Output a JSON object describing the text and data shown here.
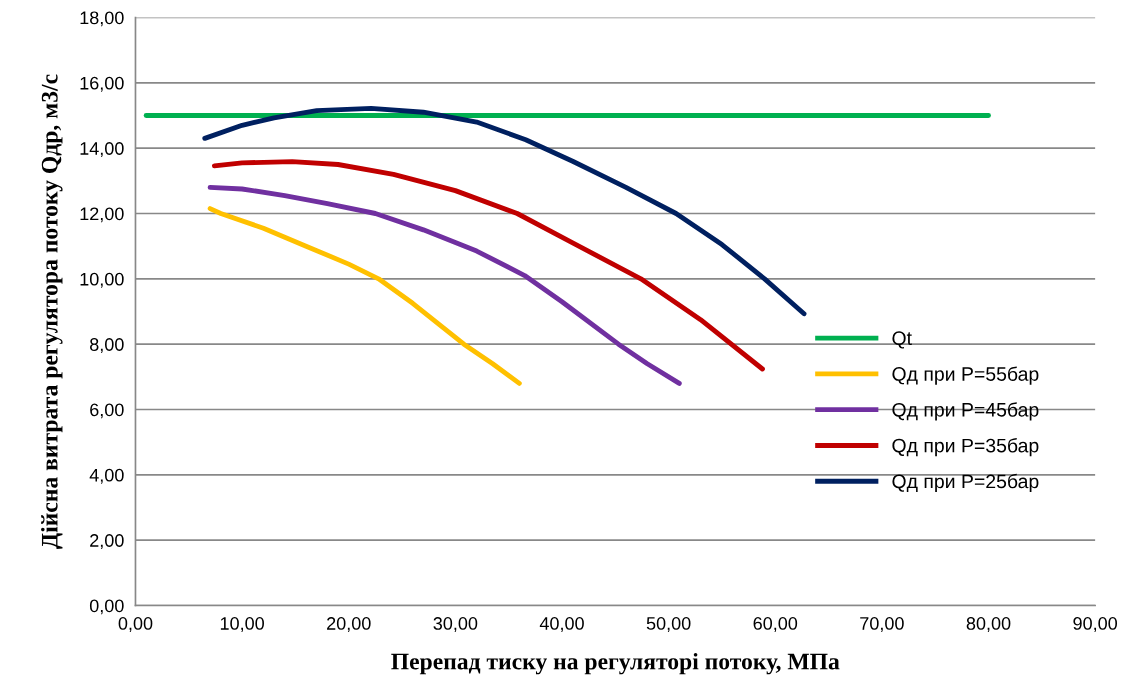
{
  "chart_data": {
    "type": "line",
    "xlabel": "Перепад тиску на регуляторі потоку, МПа",
    "ylabel": "Дійсна витрата регулятора потоку Qдр, м3/с",
    "xlim": [
      0,
      90
    ],
    "ylim": [
      0,
      18
    ],
    "xticks": [
      {
        "value": 0,
        "label": "0,00"
      },
      {
        "value": 10,
        "label": "10,00"
      },
      {
        "value": 20,
        "label": "20,00"
      },
      {
        "value": 30,
        "label": "30,00"
      },
      {
        "value": 40,
        "label": "40,00"
      },
      {
        "value": 50,
        "label": "50,00"
      },
      {
        "value": 60,
        "label": "60,00"
      },
      {
        "value": 70,
        "label": "70,00"
      },
      {
        "value": 80,
        "label": "80,00"
      },
      {
        "value": 90,
        "label": "90,00"
      }
    ],
    "yticks": [
      {
        "value": 0,
        "label": "0,00"
      },
      {
        "value": 2,
        "label": "2,00"
      },
      {
        "value": 4,
        "label": "4,00"
      },
      {
        "value": 6,
        "label": "6,00"
      },
      {
        "value": 8,
        "label": "8,00"
      },
      {
        "value": 10,
        "label": "10,00"
      },
      {
        "value": 12,
        "label": "12,00"
      },
      {
        "value": 14,
        "label": "14,00"
      },
      {
        "value": 16,
        "label": "16,00"
      },
      {
        "value": 18,
        "label": "18,00"
      }
    ],
    "grid": "y",
    "legend": "right",
    "marker": "none",
    "line_style": "solid",
    "series": [
      {
        "name": "Qt",
        "color": "#00b050",
        "x": [
          1,
          80
        ],
        "values": [
          15,
          15
        ]
      },
      {
        "name": "Qд при P=55бар",
        "color": "#ffc000",
        "x": [
          7,
          8,
          12,
          16,
          20,
          22.8,
          26,
          28.5,
          30.8,
          33.5,
          36
        ],
        "values": [
          12.15,
          12.0,
          11.55,
          11.0,
          10.45,
          10.0,
          9.25,
          8.6,
          8.0,
          7.4,
          6.8
        ]
      },
      {
        "name": "Qд при P=45бар",
        "color": "#7030a0",
        "x": [
          7,
          10,
          14,
          18,
          22.5,
          27,
          32,
          36.5,
          40,
          45.3,
          48,
          51
        ],
        "values": [
          12.8,
          12.75,
          12.55,
          12.3,
          12.0,
          11.5,
          10.85,
          10.1,
          9.3,
          8.0,
          7.4,
          6.8
        ]
      },
      {
        "name": "Qд при P=35бар",
        "color": "#c00000",
        "x": [
          7.4,
          10,
          14.7,
          19,
          24.2,
          30,
          35.8,
          41,
          47.4,
          53,
          58.8
        ],
        "values": [
          13.46,
          13.55,
          13.59,
          13.5,
          13.2,
          12.7,
          12.0,
          11.1,
          10.0,
          8.75,
          7.24
        ]
      },
      {
        "name": "Qд при P=25бар",
        "color": "#002060",
        "x": [
          6.5,
          10,
          13,
          17,
          22.1,
          27,
          32,
          36.6,
          41,
          46,
          50.7,
          55,
          59,
          62.7
        ],
        "values": [
          14.3,
          14.7,
          14.93,
          15.15,
          15.22,
          15.1,
          14.8,
          14.26,
          13.6,
          12.8,
          12.0,
          11.05,
          10.0,
          8.93
        ]
      }
    ]
  }
}
